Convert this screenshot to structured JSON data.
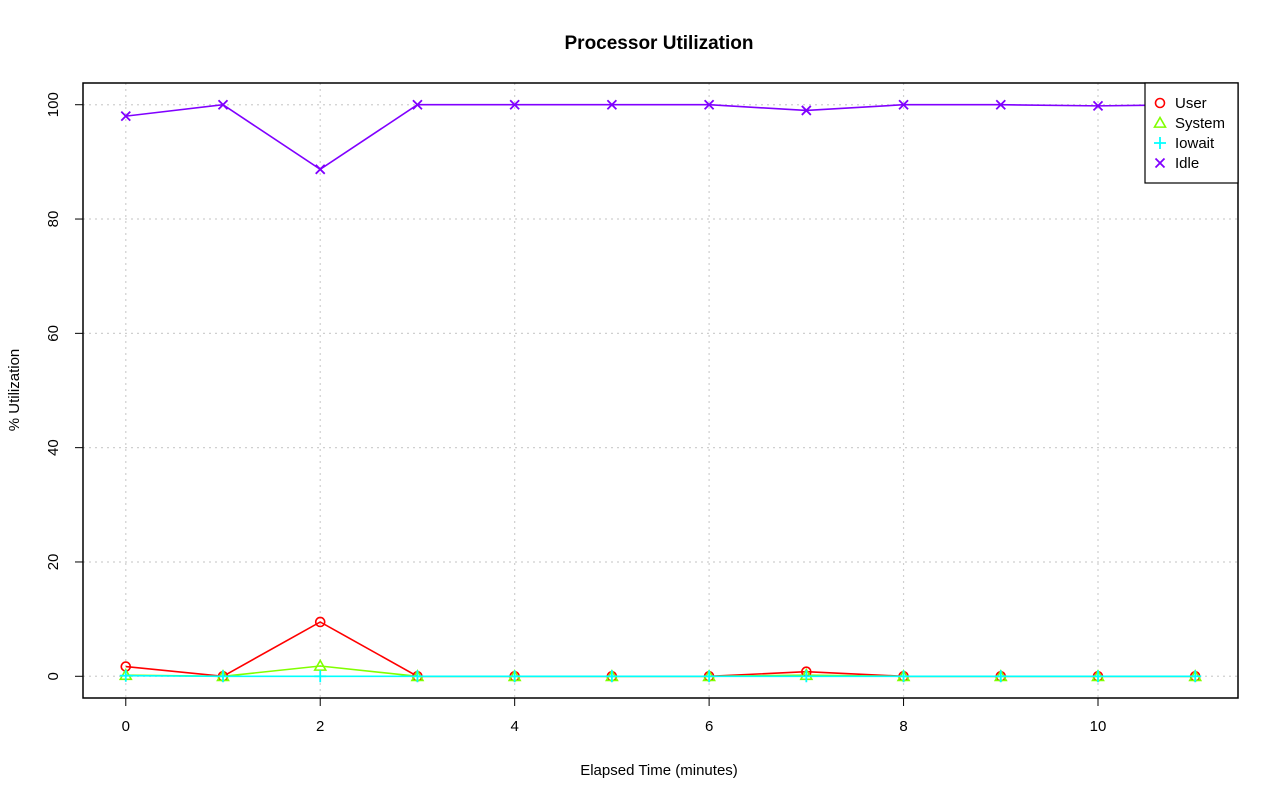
{
  "chart_data": {
    "type": "line",
    "title": "Processor Utilization",
    "xlabel": "Elapsed Time (minutes)",
    "ylabel": "% Utilization",
    "x": [
      0,
      1,
      2,
      3,
      4,
      5,
      6,
      7,
      8,
      9,
      10,
      11
    ],
    "xlim": [
      -0.44,
      11.44
    ],
    "ylim": [
      -3.8,
      103.8
    ],
    "xticks": [
      0,
      2,
      4,
      6,
      8,
      10
    ],
    "yticks": [
      0,
      20,
      40,
      60,
      80,
      100
    ],
    "grid": true,
    "legend_position": "top-right",
    "series": [
      {
        "name": "User",
        "color": "#ff0000",
        "marker": "circle",
        "values": [
          1.7,
          0.0,
          9.5,
          0.0,
          0.0,
          0.0,
          0.0,
          0.8,
          0.0,
          0.0,
          0.0,
          0.0
        ]
      },
      {
        "name": "System",
        "color": "#80ff00",
        "marker": "triangle",
        "values": [
          0.2,
          0.0,
          1.8,
          0.0,
          0.0,
          0.0,
          0.0,
          0.2,
          0.0,
          0.0,
          0.0,
          0.0
        ]
      },
      {
        "name": "Iowait",
        "color": "#00ffff",
        "marker": "plus",
        "values": [
          0.1,
          0.0,
          0.0,
          0.0,
          0.0,
          0.0,
          0.0,
          0.0,
          0.0,
          0.0,
          0.0,
          0.0
        ]
      },
      {
        "name": "Idle",
        "color": "#8000ff",
        "marker": "cross",
        "values": [
          98.0,
          100.0,
          88.7,
          100.0,
          100.0,
          100.0,
          100.0,
          99.0,
          100.0,
          100.0,
          99.8,
          100.0
        ]
      }
    ]
  }
}
